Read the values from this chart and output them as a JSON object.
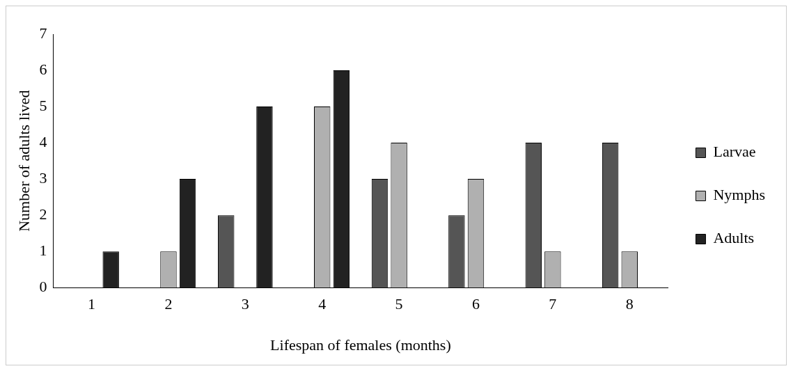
{
  "chart_data": {
    "type": "bar",
    "xlabel": "Lifespan of females (months)",
    "ylabel": "Number of adults lived",
    "categories": [
      "1",
      "2",
      "3",
      "4",
      "5",
      "6",
      "7",
      "8"
    ],
    "series": [
      {
        "name": "Larvae",
        "color": "#555555",
        "values": [
          0,
          0,
          2,
          0,
          3,
          2,
          4,
          4
        ]
      },
      {
        "name": "Nymphs",
        "color": "#b0b0b0",
        "values": [
          0,
          1,
          0,
          5,
          4,
          3,
          1,
          1
        ]
      },
      {
        "name": "Adults",
        "color": "#222222",
        "values": [
          1,
          3,
          5,
          6,
          0,
          0,
          0,
          0
        ]
      }
    ],
    "ylim": [
      0,
      7
    ],
    "yticks": [
      0,
      1,
      2,
      3,
      4,
      5,
      6,
      7
    ],
    "grid": false,
    "legend": "right"
  }
}
